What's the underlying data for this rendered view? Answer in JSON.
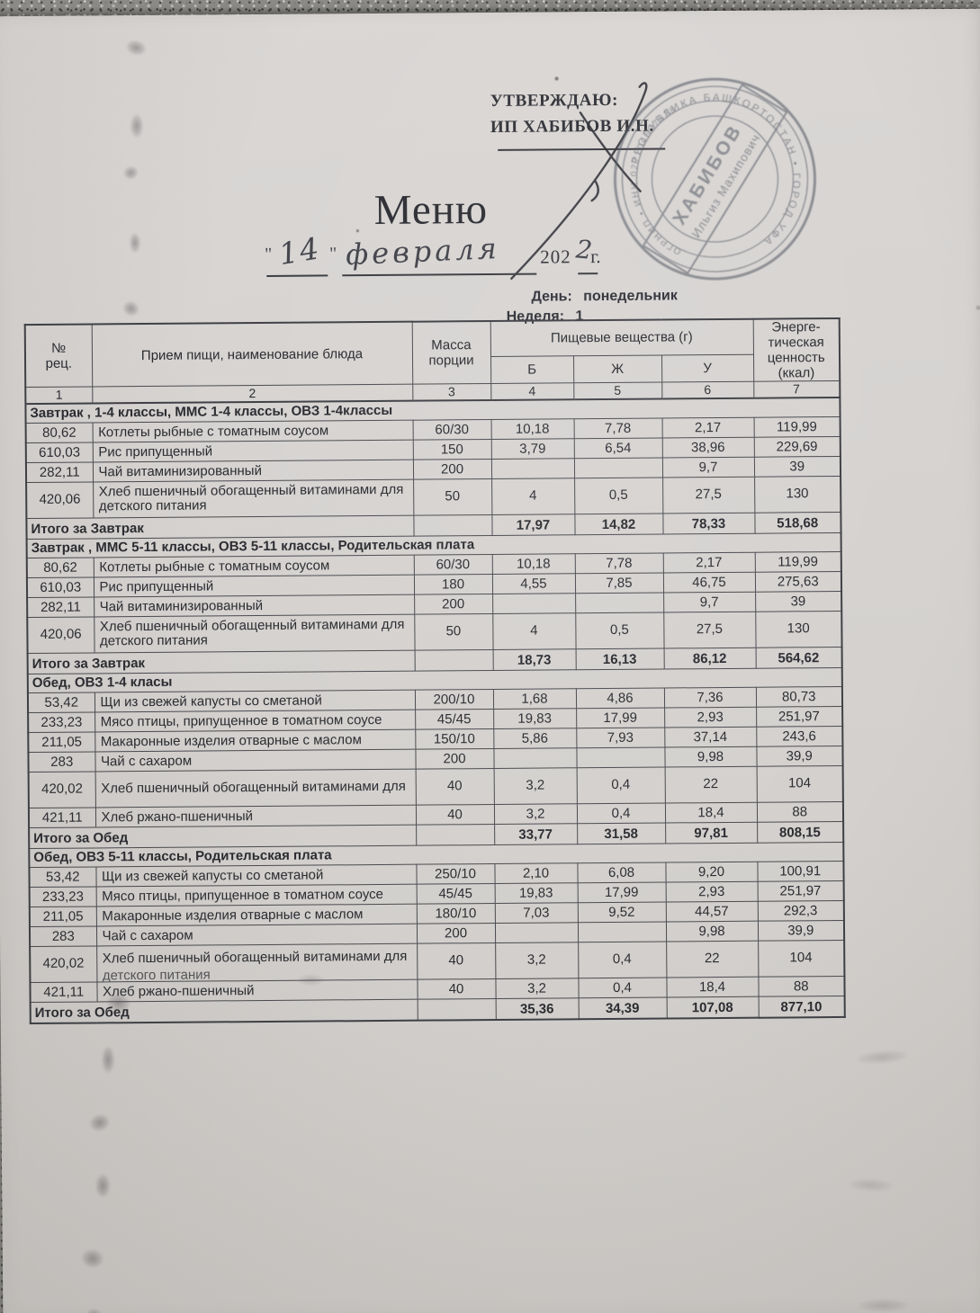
{
  "header": {
    "approve_line1": "УТВЕРЖДАЮ:",
    "approve_line2": "ИП ХАБИБОВ И.Н.",
    "title": "Меню",
    "date": {
      "open_quote": "\"",
      "day": "14",
      "close_quote": "\"",
      "month": "февраля",
      "year_printed": "202",
      "year_hand": "2",
      "year_suffix": "г.",
      "full_date": "\"14\" февраля 2022 г."
    },
    "day_label": "День:",
    "day_value": "понедельник",
    "week_label": "Неделя:",
    "week_value": "1"
  },
  "stamp": {
    "surname": "ХАБИБОВ",
    "name_patronymic": "Ильгиз Махипович",
    "ring_outer": "РЕСПУБЛИКА БАШКОРТОСТАН  •  ГОРОД УФА",
    "ring_inner": "ОГРНИП  •  ИНН 027104697838"
  },
  "table": {
    "col_headers": {
      "num": "№\nрец.",
      "dish": "Прием пищи, наименование блюда",
      "mass": "Масса\nпорции",
      "nutrients": "Пищевые вещества (г)",
      "protein": "Б",
      "fat": "Ж",
      "carbs": "У",
      "energy": "Энерге-\nтическая\nценность\n(ккал)"
    },
    "col_numbers": [
      "1",
      "2",
      "3",
      "4",
      "5",
      "6",
      "7"
    ],
    "sections": [
      {
        "title": "Завтрак , 1-4 классы, ММС 1-4 классы, ОВЗ 1-4классы",
        "rows": [
          {
            "num": "80,62",
            "name": "Котлеты рыбные с томатным соусом",
            "mass": "60/30",
            "b": "10,18",
            "zh": "7,78",
            "u": "2,17",
            "kcal": "119,99"
          },
          {
            "num": "610,03",
            "name": "Рис припущенный",
            "mass": "150",
            "b": "3,79",
            "zh": "6,54",
            "u": "38,96",
            "kcal": "229,69"
          },
          {
            "num": "282,11",
            "name": "Чай витаминизированный",
            "mass": "200",
            "b": "",
            "zh": "",
            "u": "9,7",
            "kcal": "39"
          },
          {
            "num": "420,06",
            "name": "Хлеб пшеничный обогащенный витаминами для",
            "name2": "детского питания",
            "tall": true,
            "mass": "50",
            "b": "4",
            "zh": "0,5",
            "u": "27,5",
            "kcal": "130"
          }
        ],
        "total_label": "Итого за Завтрак",
        "totals": {
          "b": "17,97",
          "zh": "14,82",
          "u": "78,33",
          "kcal": "518,68"
        }
      },
      {
        "title": "Завтрак , ММС 5-11 классы, ОВЗ 5-11 классы, Родительская плата",
        "rows": [
          {
            "num": "80,62",
            "name": "Котлеты рыбные с томатным соусом",
            "mass": "60/30",
            "b": "10,18",
            "zh": "7,78",
            "u": "2,17",
            "kcal": "119,99"
          },
          {
            "num": "610,03",
            "name": "Рис припущенный",
            "mass": "180",
            "b": "4,55",
            "zh": "7,85",
            "u": "46,75",
            "kcal": "275,63"
          },
          {
            "num": "282,11",
            "name": "Чай витаминизированный",
            "mass": "200",
            "b": "",
            "zh": "",
            "u": "9,7",
            "kcal": "39"
          },
          {
            "num": "420,06",
            "name": "Хлеб пшеничный обогащенный витаминами для",
            "name2": "детского питания",
            "tall": true,
            "mass": "50",
            "b": "4",
            "zh": "0,5",
            "u": "27,5",
            "kcal": "130"
          }
        ],
        "total_label": "Итого за Завтрак",
        "totals": {
          "b": "18,73",
          "zh": "16,13",
          "u": "86,12",
          "kcal": "564,62"
        }
      },
      {
        "title": "Обед, ОВЗ 1-4 класы",
        "rows": [
          {
            "num": "53,42",
            "name": "Щи из свежей капусты со сметаной",
            "mass": "200/10",
            "b": "1,68",
            "zh": "4,86",
            "u": "7,36",
            "kcal": "80,73"
          },
          {
            "num": "233,23",
            "name": "Мясо птицы, припущенное в томатном соусе",
            "mass": "45/45",
            "b": "19,83",
            "zh": "17,99",
            "u": "2,93",
            "kcal": "251,97"
          },
          {
            "num": "211,05",
            "name": "Макаронные изделия отварные с маслом",
            "mass": "150/10",
            "b": "5,86",
            "zh": "7,93",
            "u": "37,14",
            "kcal": "243,6"
          },
          {
            "num": "283",
            "name": "Чай с сахаром",
            "mass": "200",
            "b": "",
            "zh": "",
            "u": "9,98",
            "kcal": "39,9"
          },
          {
            "num": "420,02",
            "name": "Хлеб пшеничный обогащенный витаминами для",
            "tall": true,
            "mass": "40",
            "b": "3,2",
            "zh": "0,4",
            "u": "22",
            "kcal": "104"
          },
          {
            "num": "421,11",
            "name": "Хлеб ржано-пшеничный",
            "mass": "40",
            "b": "3,2",
            "zh": "0,4",
            "u": "18,4",
            "kcal": "88"
          }
        ],
        "total_label": "Итого за Обед",
        "totals": {
          "b": "33,77",
          "zh": "31,58",
          "u": "97,81",
          "kcal": "808,15"
        }
      },
      {
        "title": "Обед, ОВЗ 5-11 классы, Родительская плата",
        "rows": [
          {
            "num": "53,42",
            "name": "Щи из свежей капусты со сметаной",
            "mass": "250/10",
            "b": "2,10",
            "zh": "6,08",
            "u": "9,20",
            "kcal": "100,91"
          },
          {
            "num": "233,23",
            "name": "Мясо птицы, припущенное в томатном соусе",
            "mass": "45/45",
            "b": "19,83",
            "zh": "17,99",
            "u": "2,93",
            "kcal": "251,97"
          },
          {
            "num": "211,05",
            "name": "Макаронные изделия отварные с маслом",
            "mass": "180/10",
            "b": "7,03",
            "zh": "9,52",
            "u": "44,57",
            "kcal": "292,3"
          },
          {
            "num": "283",
            "name": "Чай с сахаром",
            "mass": "200",
            "b": "",
            "zh": "",
            "u": "9,98",
            "kcal": "39,9"
          },
          {
            "num": "420,02",
            "name": "Хлеб пшеничный обогащенный витаминами для",
            "name2": "детского питания",
            "name2_clipped": true,
            "tall": true,
            "mass": "40",
            "b": "3,2",
            "zh": "0,4",
            "u": "22",
            "kcal": "104"
          },
          {
            "num": "421,11",
            "name": "Хлеб ржано-пшеничный",
            "mass": "40",
            "b": "3,2",
            "zh": "0,4",
            "u": "18,4",
            "kcal": "88"
          }
        ],
        "total_label": "Итого за Обед",
        "totals": {
          "b": "35,36",
          "zh": "34,39",
          "u": "107,08",
          "kcal": "877,10"
        }
      }
    ]
  }
}
